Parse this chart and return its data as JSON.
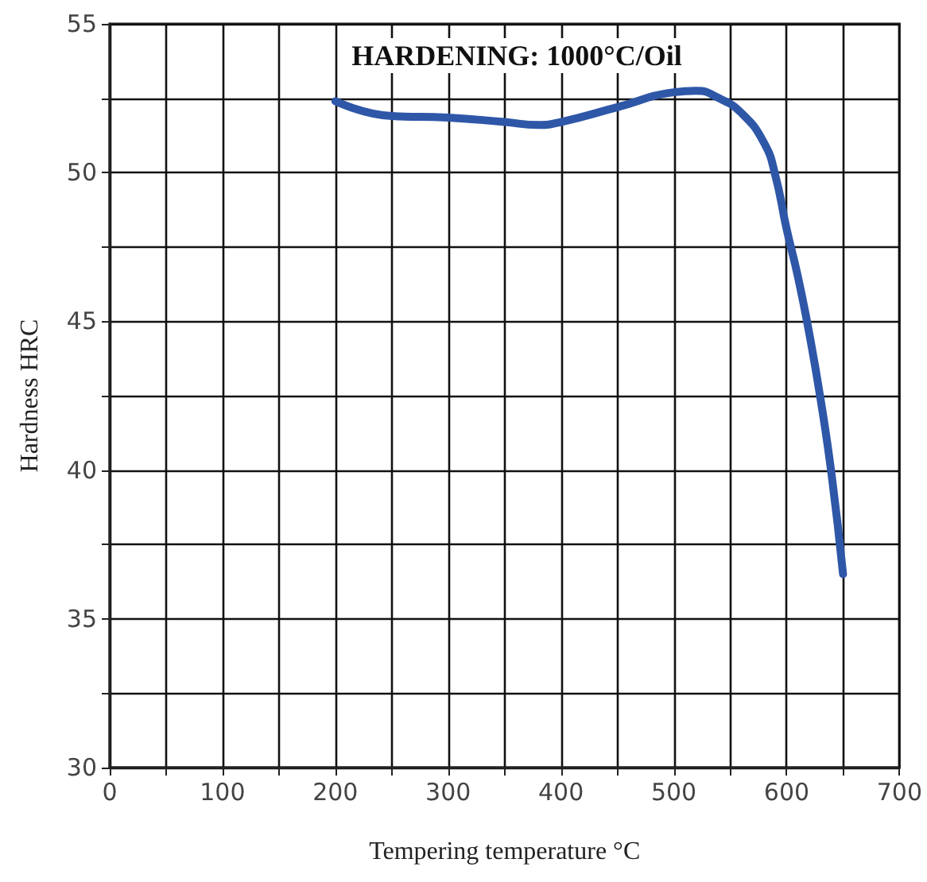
{
  "chart_data": {
    "type": "line",
    "title": "HARDENING: 1000°C/Oil",
    "xlabel": "Tempering temperature °C",
    "ylabel": "Hardness HRC",
    "x": [
      200,
      250,
      300,
      350,
      380,
      400,
      450,
      500,
      520,
      540,
      560,
      580,
      590,
      600,
      610,
      620,
      630,
      640,
      650
    ],
    "series": [
      {
        "color": "#2f57a8",
        "values": [
          52.4,
          51.9,
          51.85,
          51.7,
          51.6,
          51.7,
          52.2,
          52.7,
          52.75,
          52.5,
          52.0,
          51.0,
          49.9,
          48.1,
          46.5,
          44.6,
          42.4,
          39.8,
          36.5
        ]
      }
    ],
    "xlim": [
      0,
      700
    ],
    "xticks": [
      0,
      {
        "value": 50,
        "label": null
      },
      100,
      {
        "value": 150,
        "label": null
      },
      200,
      {
        "value": 250,
        "label": null
      },
      300,
      {
        "value": 350,
        "label": null
      },
      400,
      {
        "value": 450,
        "label": null
      },
      500,
      {
        "value": 550,
        "label": null
      },
      600,
      {
        "value": 650,
        "label": null
      },
      700
    ],
    "ylim": [
      30,
      55
    ],
    "yticks": [
      30,
      {
        "value": 32.5,
        "label": null
      },
      35,
      {
        "value": 37.5,
        "label": null
      },
      40,
      {
        "value": 42.5,
        "label": null
      },
      45,
      {
        "value": 47.5,
        "label": null
      },
      50,
      {
        "value": 52.5,
        "label": null
      },
      55
    ],
    "grid": true,
    "marker": "none",
    "line_style": "solid"
  }
}
